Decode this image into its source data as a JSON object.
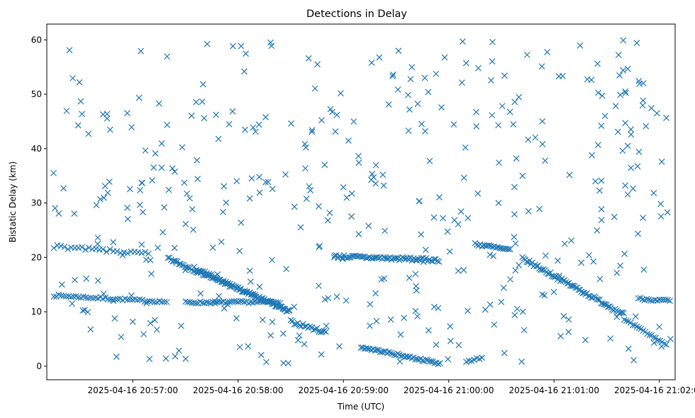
{
  "chart_data": {
    "type": "scatter",
    "title": "Detections in Delay",
    "xlabel": "Time (UTC)",
    "ylabel": "Bistatic Delay (km)",
    "marker": "x",
    "color": "#1f77b4",
    "xlim_seconds": [
      -49,
      309
    ],
    "ylim": [
      -2.5,
      62.9
    ],
    "x_ticks": [
      {
        "seconds": 0,
        "label": "2025-04-16 20:57:00"
      },
      {
        "seconds": 60,
        "label": "2025-04-16 20:58:00"
      },
      {
        "seconds": 120,
        "label": "2025-04-16 20:59:00"
      },
      {
        "seconds": 180,
        "label": "2025-04-16 21:00:00"
      },
      {
        "seconds": 240,
        "label": "2025-04-16 21:01:00"
      },
      {
        "seconds": 300,
        "label": "2025-04-16 21:02:00"
      }
    ],
    "y_ticks": [
      0,
      10,
      20,
      30,
      40,
      50,
      60
    ],
    "tracks": [
      {
        "name": "track-a-1",
        "x_start": -45,
        "x_end": 20,
        "y_start": 13.0,
        "y_end": 11.8,
        "step": 1.4,
        "jitter": 0.2
      },
      {
        "name": "track-a-2",
        "x_start": 30,
        "x_end": 84,
        "y_start": 11.7,
        "y_end": 11.8,
        "step": 1.2,
        "jitter": 0.2
      },
      {
        "name": "track-b",
        "x_start": -45,
        "x_end": 10,
        "y_start": 22.0,
        "y_end": 20.6,
        "step": 2.0,
        "jitter": 0.3
      },
      {
        "name": "track-c",
        "x_start": 20,
        "x_end": 90,
        "y_start": 19.8,
        "y_end": 10.0,
        "step": 0.9,
        "jitter": 0.3
      },
      {
        "name": "track-d",
        "x_start": 35,
        "x_end": 89,
        "y_start": 18.0,
        "y_end": 10.0,
        "step": 1.2,
        "jitter": 0.3
      },
      {
        "name": "track-e",
        "x_start": 90,
        "x_end": 110,
        "y_start": 8.2,
        "y_end": 6.2,
        "step": 1.0,
        "jitter": 0.3
      },
      {
        "name": "track-f",
        "x_start": 130,
        "x_end": 175,
        "y_start": 3.5,
        "y_end": 0.5,
        "step": 1.0,
        "jitter": 0.2
      },
      {
        "name": "track-g",
        "x_start": 115,
        "x_end": 175,
        "y_start": 20.2,
        "y_end": 19.5,
        "step": 0.9,
        "jitter": 0.3
      },
      {
        "name": "track-h",
        "x_start": 190,
        "x_end": 200,
        "y_start": 0.8,
        "y_end": 1.6,
        "step": 1.5,
        "jitter": 0.2
      },
      {
        "name": "track-i",
        "x_start": 195,
        "x_end": 215,
        "y_start": 22.5,
        "y_end": 21.3,
        "step": 1.0,
        "jitter": 0.3
      },
      {
        "name": "track-j",
        "x_start": 222,
        "x_end": 280,
        "y_start": 19.8,
        "y_end": 9.5,
        "step": 0.8,
        "jitter": 0.3
      },
      {
        "name": "track-k",
        "x_start": 280,
        "x_end": 305,
        "y_start": 8.5,
        "y_end": 3.8,
        "step": 1.2,
        "jitter": 0.2
      },
      {
        "name": "track-l",
        "x_start": 288,
        "x_end": 307,
        "y_start": 12.4,
        "y_end": 12.0,
        "step": 1.2,
        "jitter": 0.2
      }
    ],
    "noise": {
      "count": 420,
      "x_range": [
        -46,
        307
      ],
      "y_range": [
        0.5,
        60
      ],
      "seed": 7
    }
  }
}
